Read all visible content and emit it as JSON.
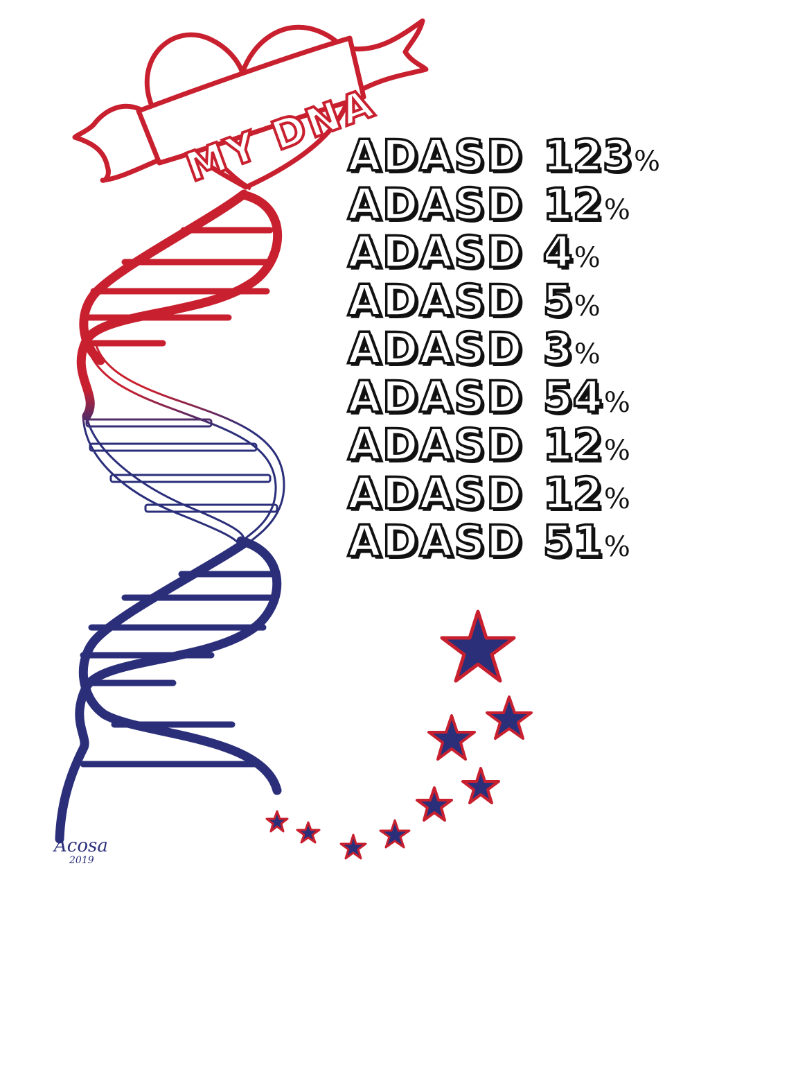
{
  "colors": {
    "red": "#c8202f",
    "navy": "#2b2f7a",
    "text": "#111111"
  },
  "banner": {
    "text": "MY DNA"
  },
  "signature": {
    "name": "Acosa",
    "year": "2019"
  },
  "stats": [
    {
      "label": "ADASD",
      "value": "123",
      "unit": "%"
    },
    {
      "label": "ADASD",
      "value": "12",
      "unit": "%"
    },
    {
      "label": "ADASD",
      "value": "4",
      "unit": "%"
    },
    {
      "label": "ADASD",
      "value": "5",
      "unit": "%"
    },
    {
      "label": "ADASD",
      "value": "3",
      "unit": "%"
    },
    {
      "label": "ADASD",
      "value": "54",
      "unit": "%"
    },
    {
      "label": "ADASD",
      "value": "12",
      "unit": "%"
    },
    {
      "label": "ADASD",
      "value": "12",
      "unit": "%"
    },
    {
      "label": "ADASD",
      "value": "51",
      "unit": "%"
    }
  ]
}
